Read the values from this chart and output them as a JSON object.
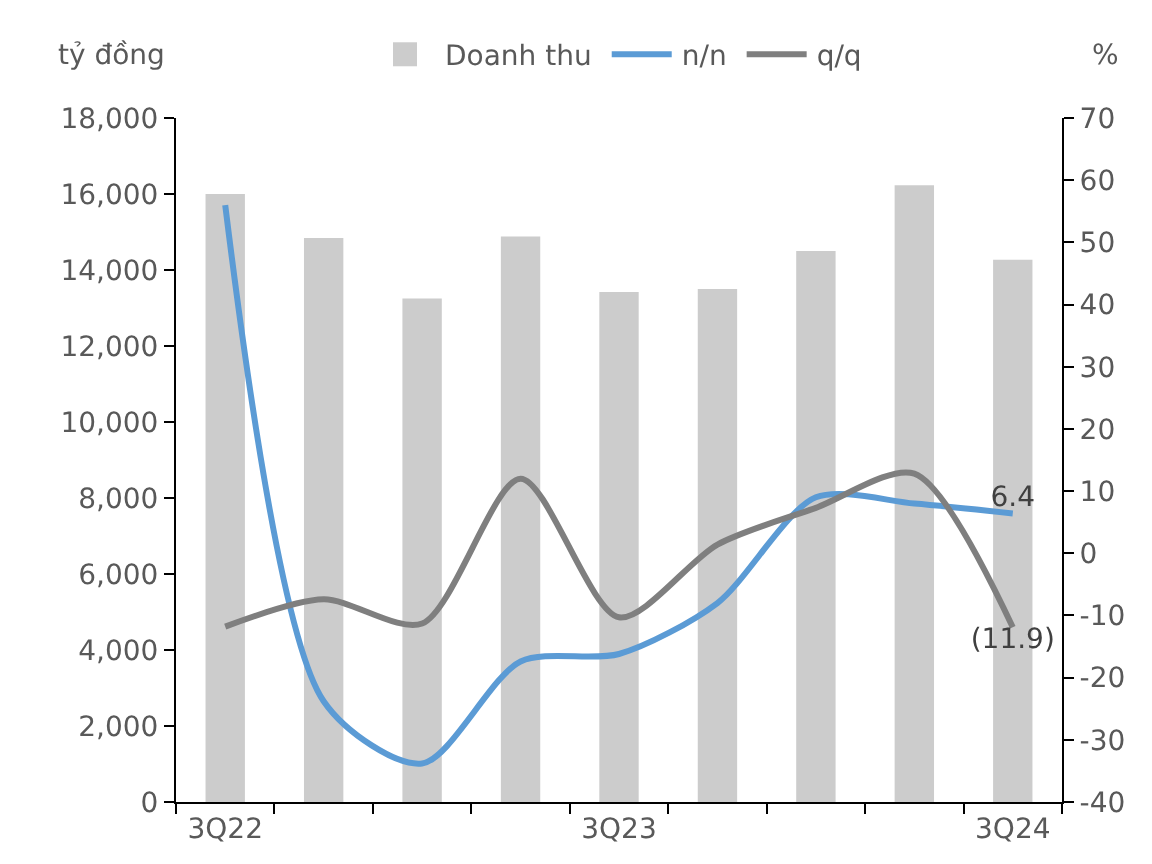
{
  "chart_data": {
    "type": "bar",
    "categories": [
      "3Q22",
      null,
      null,
      null,
      "3Q23",
      null,
      null,
      null,
      "3Q24"
    ],
    "ylabel": "tỷ đồng",
    "y2label": "%",
    "series": [
      {
        "name": "Doanh thu",
        "color": "#cccccc",
        "values": [
          16000,
          14840,
          13250,
          14880,
          13420,
          13500,
          14500,
          16230,
          14270
        ]
      },
      {
        "name": "n/n",
        "type": "line",
        "axis": "y2",
        "color": "#5b9bd5",
        "values": [
          56,
          -23.8,
          -33.8,
          -17.4,
          -16.2,
          -8,
          9,
          8,
          6.4
        ],
        "value_labels": [
          null,
          null,
          null,
          null,
          null,
          null,
          null,
          null,
          "6.4"
        ]
      },
      {
        "name": "q/q",
        "type": "line",
        "axis": "y2",
        "color": "#7f7f7f",
        "values": [
          -11.8,
          -7.4,
          -11.3,
          12,
          -10.3,
          1.4,
          7.3,
          12.8,
          -11.9
        ],
        "value_labels": [
          null,
          null,
          null,
          null,
          null,
          null,
          null,
          null,
          "(11.9)"
        ]
      }
    ],
    "ylim": [
      0,
      18000
    ],
    "yticks": [
      0,
      {
        "value": 2000,
        "label": "2,000"
      },
      {
        "value": 4000,
        "label": "4,000"
      },
      {
        "value": 6000,
        "label": "6,000"
      },
      {
        "value": 8000,
        "label": "8,000"
      },
      {
        "value": 10000,
        "label": "10,000"
      },
      {
        "value": 12000,
        "label": "12,000"
      },
      {
        "value": 14000,
        "label": "14,000"
      },
      {
        "value": 16000,
        "label": "16,000"
      },
      {
        "value": 18000,
        "label": "18,000"
      }
    ],
    "y2lim": [
      -40,
      70
    ],
    "y2ticks": [
      -40,
      -30,
      -20,
      -10,
      0,
      10,
      20,
      30,
      40,
      50,
      60,
      70
    ],
    "legend": "top",
    "grid": false,
    "marker": "none",
    "line_style": "solid"
  }
}
